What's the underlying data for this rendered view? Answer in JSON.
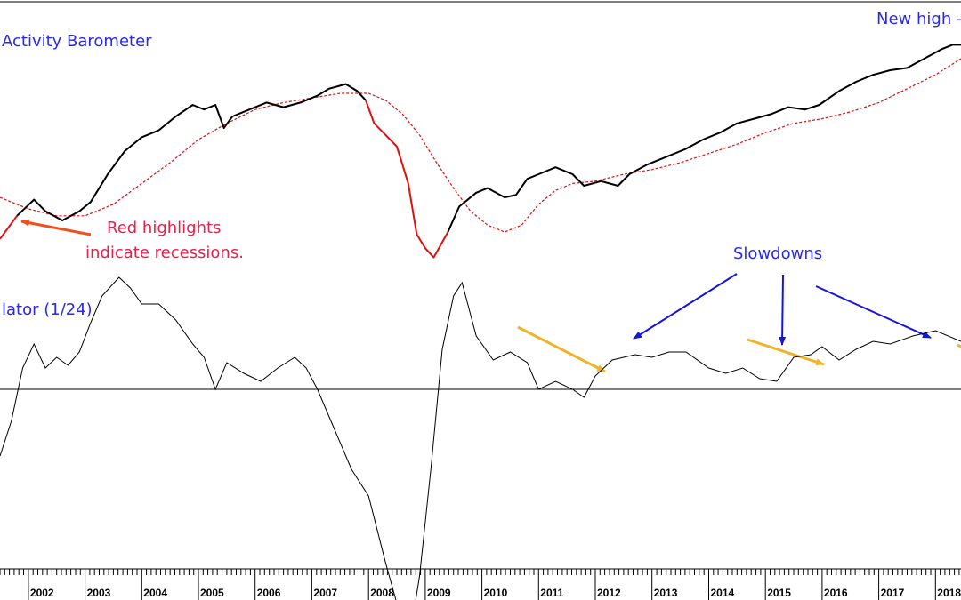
{
  "chart_data": [
    {
      "type": "line",
      "title": "Activity Barometer",
      "ylim": [
        0,
        100
      ],
      "series": [
        {
          "role": "barometer",
          "color": "#000000",
          "recession_color": "#e01010",
          "points": [
            [
              2001.5,
              12
            ],
            [
              2001.8,
              22
            ],
            [
              2002.1,
              29
            ],
            [
              2002.3,
              24
            ],
            [
              2002.6,
              20
            ],
            [
              2002.9,
              24
            ],
            [
              2003.1,
              28
            ],
            [
              2003.4,
              40
            ],
            [
              2003.7,
              50
            ],
            [
              2004.0,
              56
            ],
            [
              2004.3,
              59
            ],
            [
              2004.6,
              65
            ],
            [
              2004.9,
              70
            ],
            [
              2005.1,
              68
            ],
            [
              2005.3,
              70
            ],
            [
              2005.45,
              60
            ],
            [
              2005.6,
              65
            ],
            [
              2005.9,
              68
            ],
            [
              2006.2,
              71
            ],
            [
              2006.5,
              69
            ],
            [
              2006.8,
              71
            ],
            [
              2007.1,
              74
            ],
            [
              2007.3,
              77
            ],
            [
              2007.6,
              79
            ],
            [
              2007.8,
              76
            ],
            [
              2007.95,
              72
            ],
            [
              2008.1,
              62
            ],
            [
              2008.3,
              57
            ],
            [
              2008.5,
              52
            ],
            [
              2008.7,
              36
            ],
            [
              2008.85,
              14
            ],
            [
              2009.0,
              8
            ],
            [
              2009.15,
              4
            ],
            [
              2009.4,
              15
            ],
            [
              2009.6,
              26
            ],
            [
              2009.9,
              32
            ],
            [
              2010.1,
              34
            ],
            [
              2010.4,
              30
            ],
            [
              2010.6,
              31
            ],
            [
              2010.8,
              38
            ],
            [
              2011.0,
              40
            ],
            [
              2011.3,
              43
            ],
            [
              2011.6,
              40
            ],
            [
              2011.8,
              35
            ],
            [
              2012.1,
              37
            ],
            [
              2012.4,
              35
            ],
            [
              2012.6,
              40
            ],
            [
              2012.9,
              44
            ],
            [
              2013.2,
              47
            ],
            [
              2013.6,
              51
            ],
            [
              2013.9,
              55
            ],
            [
              2014.2,
              58
            ],
            [
              2014.5,
              62
            ],
            [
              2014.8,
              64
            ],
            [
              2015.1,
              66
            ],
            [
              2015.4,
              69
            ],
            [
              2015.7,
              68
            ],
            [
              2015.95,
              70
            ],
            [
              2016.3,
              76
            ],
            [
              2016.6,
              80
            ],
            [
              2016.9,
              83
            ],
            [
              2017.2,
              85
            ],
            [
              2017.5,
              86
            ],
            [
              2017.8,
              90
            ],
            [
              2018.1,
              94
            ],
            [
              2018.3,
              96
            ],
            [
              2018.45,
              96
            ]
          ],
          "recessions": [
            [
              2001.0,
              2001.6
            ],
            [
              2007.95,
              2009.15
            ]
          ]
        },
        {
          "role": "moving-average",
          "color": "#e01010",
          "dashed": true,
          "points": [
            [
              2001.5,
              30
            ],
            [
              2002.0,
              25
            ],
            [
              2002.5,
              22
            ],
            [
              2003.0,
              22
            ],
            [
              2003.5,
              27
            ],
            [
              2004.0,
              36
            ],
            [
              2004.5,
              45
            ],
            [
              2005.0,
              55
            ],
            [
              2005.5,
              62
            ],
            [
              2006.0,
              68
            ],
            [
              2006.5,
              71
            ],
            [
              2007.0,
              73
            ],
            [
              2007.5,
              75
            ],
            [
              2008.0,
              75
            ],
            [
              2008.3,
              72
            ],
            [
              2008.6,
              66
            ],
            [
              2008.9,
              57
            ],
            [
              2009.2,
              45
            ],
            [
              2009.5,
              34
            ],
            [
              2009.8,
              24
            ],
            [
              2010.1,
              18
            ],
            [
              2010.4,
              15
            ],
            [
              2010.7,
              18
            ],
            [
              2011.0,
              27
            ],
            [
              2011.3,
              33
            ],
            [
              2011.6,
              36
            ],
            [
              2012.0,
              37
            ],
            [
              2012.5,
              40
            ],
            [
              2013.0,
              42
            ],
            [
              2013.5,
              45
            ],
            [
              2014.0,
              49
            ],
            [
              2014.5,
              53
            ],
            [
              2015.0,
              58
            ],
            [
              2015.5,
              62
            ],
            [
              2016.0,
              64
            ],
            [
              2016.5,
              67
            ],
            [
              2017.0,
              71
            ],
            [
              2017.5,
              77
            ],
            [
              2018.0,
              83
            ],
            [
              2018.45,
              90
            ]
          ]
        }
      ]
    },
    {
      "type": "line",
      "title": "lator (1/24)",
      "ylim": [
        -100,
        60
      ],
      "zero_line": 0,
      "series": [
        {
          "role": "oscillator",
          "color": "#000000",
          "points": [
            [
              2001.5,
              -25
            ],
            [
              2001.7,
              -12
            ],
            [
              2001.9,
              8
            ],
            [
              2002.1,
              17
            ],
            [
              2002.3,
              8
            ],
            [
              2002.5,
              12
            ],
            [
              2002.7,
              9
            ],
            [
              2002.9,
              14
            ],
            [
              2003.1,
              25
            ],
            [
              2003.3,
              35
            ],
            [
              2003.6,
              42
            ],
            [
              2003.8,
              38
            ],
            [
              2004.0,
              32
            ],
            [
              2004.3,
              32
            ],
            [
              2004.6,
              26
            ],
            [
              2004.9,
              17
            ],
            [
              2005.1,
              12
            ],
            [
              2005.3,
              0
            ],
            [
              2005.5,
              10
            ],
            [
              2005.8,
              6
            ],
            [
              2006.1,
              3
            ],
            [
              2006.4,
              8
            ],
            [
              2006.7,
              12
            ],
            [
              2006.9,
              8
            ],
            [
              2007.1,
              0
            ],
            [
              2007.4,
              -15
            ],
            [
              2007.7,
              -30
            ],
            [
              2008.0,
              -40
            ],
            [
              2008.3,
              -65
            ],
            [
              2008.6,
              -88
            ],
            [
              2008.75,
              -90
            ],
            [
              2008.9,
              -70
            ],
            [
              2009.1,
              -30
            ],
            [
              2009.3,
              15
            ],
            [
              2009.5,
              35
            ],
            [
              2009.65,
              40
            ],
            [
              2009.9,
              20
            ],
            [
              2010.2,
              11
            ],
            [
              2010.5,
              14
            ],
            [
              2010.8,
              10
            ],
            [
              2011.0,
              0
            ],
            [
              2011.3,
              3
            ],
            [
              2011.6,
              0
            ],
            [
              2011.8,
              -3
            ],
            [
              2012.0,
              5
            ],
            [
              2012.3,
              11
            ],
            [
              2012.7,
              13
            ],
            [
              2013.0,
              12
            ],
            [
              2013.3,
              14
            ],
            [
              2013.6,
              14
            ],
            [
              2014.0,
              8
            ],
            [
              2014.3,
              6
            ],
            [
              2014.6,
              8
            ],
            [
              2014.9,
              4
            ],
            [
              2015.2,
              3
            ],
            [
              2015.5,
              12
            ],
            [
              2015.8,
              13
            ],
            [
              2016.0,
              16
            ],
            [
              2016.3,
              11
            ],
            [
              2016.6,
              15
            ],
            [
              2016.9,
              18
            ],
            [
              2017.2,
              17
            ],
            [
              2017.6,
              20
            ],
            [
              2018.0,
              22
            ],
            [
              2018.45,
              18
            ]
          ]
        }
      ]
    }
  ],
  "x_axis": {
    "xlim": [
      2001.5,
      2018.45
    ],
    "tick_labels": [
      "2002",
      "2003",
      "2004",
      "2005",
      "2006",
      "2007",
      "2008",
      "2009",
      "2010",
      "2011",
      "2012",
      "2013",
      "2014",
      "2015",
      "2016",
      "2017",
      "2018"
    ]
  },
  "annotations": {
    "new_high": "New high -",
    "red_note_line1": "Red highlights",
    "red_note_line2": "indicate recessions.",
    "slowdowns": "Slowdowns"
  },
  "colors": {
    "label_blue": "#2a2ae6",
    "label_red": "#e8204a",
    "arrow_orange": "#f0501e",
    "arrow_blue": "#1414dc",
    "arrow_gold": "#f0b428"
  }
}
